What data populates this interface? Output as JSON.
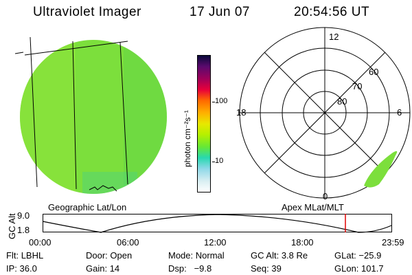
{
  "header": {
    "instrument": "Ultraviolet Imager",
    "date": "17 Jun 07",
    "time": "20:54:56 UT"
  },
  "left_panel": {
    "title": "Geographic Lat/Lon"
  },
  "colorbar": {
    "unit_label": "photon cm⁻²s⁻¹",
    "ticks": [
      "100",
      "10"
    ],
    "colors": [
      "#0a0a3a",
      "#5b0a6e",
      "#a0005a",
      "#e8003a",
      "#ff6a00",
      "#ffb000",
      "#e8e800",
      "#b6f000",
      "#66e836",
      "#28d8b0",
      "#8ed8e8",
      "#d8eef2",
      "#ffffff"
    ]
  },
  "polar_plot": {
    "title": "Apex MLat/MLT",
    "lat_labels": [
      "80",
      "70",
      "60"
    ],
    "mlt_labels": [
      "12",
      "18",
      "6",
      "0"
    ]
  },
  "altitude_strip": {
    "ylabel": "GC Alt",
    "y_ticks": [
      "9.0",
      "1.8"
    ],
    "x_ticks": [
      "00:00",
      "06:00",
      "12:00",
      "18:00",
      "23:59"
    ],
    "marker_color": "#e00000"
  },
  "info": {
    "row1": [
      {
        "label": "Flt:",
        "value": "LBHL"
      },
      {
        "label": "Door:",
        "value": "Open"
      },
      {
        "label": "Mode:",
        "value": "Normal"
      },
      {
        "label": "GC Alt:",
        "value": "3.8 Re"
      },
      {
        "label": "GLat:",
        "value": "−25.9"
      }
    ],
    "row2": [
      {
        "label": "IP:",
        "value": "36.0"
      },
      {
        "label": "Gain:",
        "value": "14"
      },
      {
        "label": "Dsp:",
        "value": "−9.8"
      },
      {
        "label": "Seq:",
        "value": "39"
      },
      {
        "label": "GLon:",
        "value": "101.7"
      }
    ]
  },
  "colors": {
    "image_green": "#7cdf3c",
    "image_yellow_green": "#a8e83a",
    "aurora_cyan": "#2ed3a8"
  }
}
